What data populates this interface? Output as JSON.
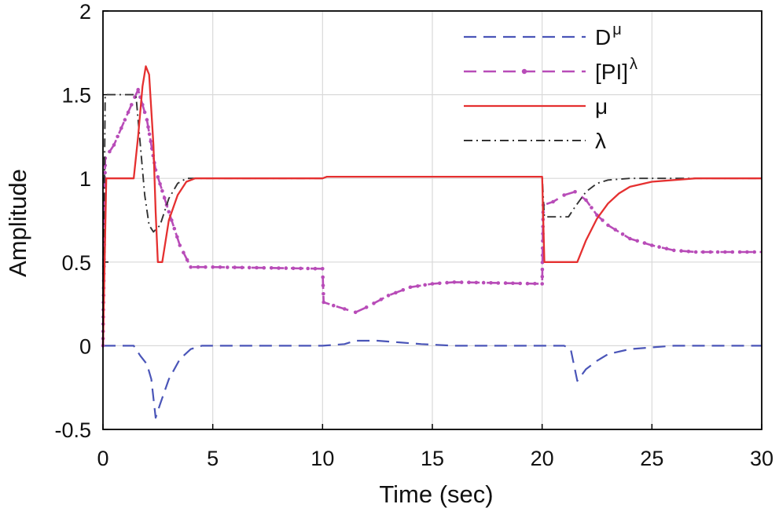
{
  "chart_data": {
    "type": "line",
    "xlabel": "Time (sec)",
    "ylabel": "Amplitude",
    "xlim": [
      0,
      30
    ],
    "ylim": [
      -0.5,
      2
    ],
    "x_ticks": [
      "0",
      "5",
      "10",
      "15",
      "20",
      "25",
      "30"
    ],
    "y_ticks": [
      "-0.5",
      "0",
      "0.5",
      "1",
      "1.5",
      "2"
    ],
    "grid": true,
    "legend_position": "top-right",
    "series": [
      {
        "name": "D",
        "superscript": "μ",
        "color": "#4a55b8",
        "style": "dashed",
        "points": [
          [
            0,
            0
          ],
          [
            1.4,
            0
          ],
          [
            1.7,
            -0.06
          ],
          [
            2.0,
            -0.11
          ],
          [
            2.2,
            -0.2
          ],
          [
            2.4,
            -0.43
          ],
          [
            2.6,
            -0.35
          ],
          [
            3.0,
            -0.2
          ],
          [
            3.5,
            -0.08
          ],
          [
            4.0,
            -0.02
          ],
          [
            4.5,
            0
          ],
          [
            10,
            0
          ],
          [
            11.0,
            0.01
          ],
          [
            11.5,
            0.03
          ],
          [
            12.5,
            0.03
          ],
          [
            13.5,
            0.02
          ],
          [
            14.5,
            0.01
          ],
          [
            16,
            0
          ],
          [
            20,
            0
          ],
          [
            21.0,
            0
          ],
          [
            21.3,
            -0.02
          ],
          [
            21.6,
            -0.21
          ],
          [
            22.0,
            -0.14
          ],
          [
            22.5,
            -0.09
          ],
          [
            23.0,
            -0.05
          ],
          [
            24.0,
            -0.02
          ],
          [
            25.0,
            -0.01
          ],
          [
            26.0,
            0
          ],
          [
            30,
            0
          ]
        ]
      },
      {
        "name": "[PI]",
        "superscript": "λ",
        "color": "#b84cb8",
        "style": "dashed-dot-marker",
        "points": [
          [
            0,
            0
          ],
          [
            0.1,
            1.12
          ],
          [
            0.5,
            1.2
          ],
          [
            1.0,
            1.35
          ],
          [
            1.6,
            1.53
          ],
          [
            2.0,
            1.35
          ],
          [
            2.4,
            1.05
          ],
          [
            3.0,
            0.8
          ],
          [
            3.5,
            0.6
          ],
          [
            4.0,
            0.47
          ],
          [
            5,
            0.47
          ],
          [
            10,
            0.46
          ],
          [
            10.05,
            0.26
          ],
          [
            10.5,
            0.24
          ],
          [
            11.0,
            0.22
          ],
          [
            11.5,
            0.2
          ],
          [
            12.0,
            0.23
          ],
          [
            13.0,
            0.3
          ],
          [
            14.0,
            0.35
          ],
          [
            15.0,
            0.37
          ],
          [
            16.0,
            0.38
          ],
          [
            20,
            0.37
          ],
          [
            20.05,
            0.84
          ],
          [
            20.5,
            0.86
          ],
          [
            21.0,
            0.9
          ],
          [
            21.5,
            0.92
          ],
          [
            22.0,
            0.87
          ],
          [
            22.5,
            0.78
          ],
          [
            23.0,
            0.72
          ],
          [
            24.0,
            0.64
          ],
          [
            25.0,
            0.6
          ],
          [
            26.0,
            0.57
          ],
          [
            27.0,
            0.56
          ],
          [
            28.0,
            0.56
          ],
          [
            30,
            0.56
          ]
        ]
      },
      {
        "name": "μ",
        "superscript": "",
        "color": "#e53030",
        "style": "solid",
        "points": [
          [
            0,
            0
          ],
          [
            0.15,
            1.0
          ],
          [
            1.4,
            1.0
          ],
          [
            1.6,
            1.25
          ],
          [
            1.8,
            1.55
          ],
          [
            1.95,
            1.67
          ],
          [
            2.1,
            1.62
          ],
          [
            2.3,
            1.2
          ],
          [
            2.4,
            0.8
          ],
          [
            2.5,
            0.5
          ],
          [
            2.7,
            0.5
          ],
          [
            3.0,
            0.75
          ],
          [
            3.4,
            0.9
          ],
          [
            3.8,
            0.98
          ],
          [
            4.2,
            1.0
          ],
          [
            10,
            1.0
          ],
          [
            10.2,
            1.01
          ],
          [
            20,
            1.01
          ],
          [
            20.1,
            0.5
          ],
          [
            21.2,
            0.5
          ],
          [
            21.6,
            0.5
          ],
          [
            22.0,
            0.63
          ],
          [
            22.5,
            0.76
          ],
          [
            23.0,
            0.85
          ],
          [
            23.5,
            0.91
          ],
          [
            24.0,
            0.95
          ],
          [
            25.0,
            0.98
          ],
          [
            26.0,
            0.99
          ],
          [
            27.0,
            1.0
          ],
          [
            30,
            1.0
          ]
        ]
      },
      {
        "name": "λ",
        "superscript": "",
        "color": "#333333",
        "style": "dash-dot",
        "points": [
          [
            0,
            0
          ],
          [
            0.1,
            1.5
          ],
          [
            1.5,
            1.5
          ],
          [
            1.7,
            1.2
          ],
          [
            1.9,
            0.9
          ],
          [
            2.1,
            0.72
          ],
          [
            2.3,
            0.68
          ],
          [
            2.6,
            0.72
          ],
          [
            3.0,
            0.88
          ],
          [
            3.4,
            0.97
          ],
          [
            3.8,
            1.0
          ],
          [
            10,
            1.0
          ],
          [
            10.2,
            1.01
          ],
          [
            20,
            1.01
          ],
          [
            20.1,
            0.77
          ],
          [
            21.2,
            0.77
          ],
          [
            21.5,
            0.83
          ],
          [
            22.0,
            0.92
          ],
          [
            22.5,
            0.97
          ],
          [
            23.0,
            0.99
          ],
          [
            24.0,
            1.0
          ],
          [
            30,
            1.0
          ]
        ]
      }
    ]
  }
}
